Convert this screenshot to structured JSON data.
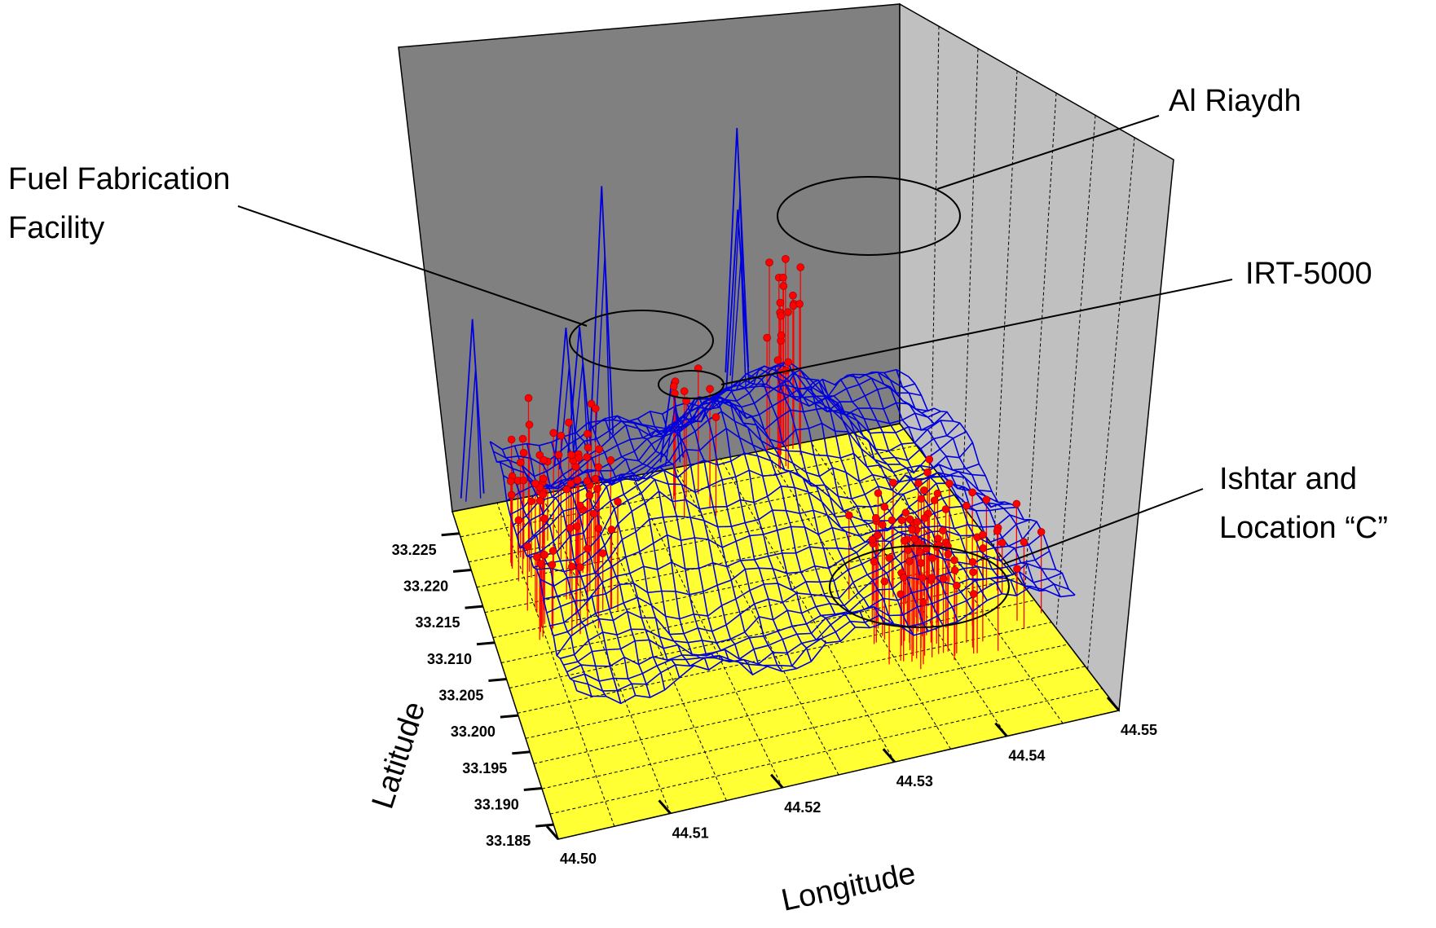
{
  "chart_data": {
    "type": "surface",
    "title": "",
    "xlabel": "Longitude",
    "ylabel": "Latitude",
    "x_ticks": [
      "44.50",
      "44.51",
      "44.52",
      "44.53",
      "44.54",
      "44.55"
    ],
    "y_ticks": [
      "33.185",
      "33.190",
      "33.195",
      "33.200",
      "33.205",
      "33.210",
      "33.215",
      "33.220",
      "33.225"
    ],
    "xlim": [
      44.5,
      44.55
    ],
    "ylim": [
      33.183,
      33.228
    ],
    "grid": true,
    "colors": {
      "floor": "#ffff33",
      "back_wall": "#808080",
      "side_wall": "#c0c0c0",
      "surface": "#0000dd",
      "samples": "#ff0000"
    },
    "annotations": [
      {
        "id": "fuel",
        "lines": [
          "Fuel Fabrication",
          "Facility"
        ]
      },
      {
        "id": "riaydh",
        "lines": [
          "Al Riaydh"
        ]
      },
      {
        "id": "irt",
        "lines": [
          "IRT-5000"
        ]
      },
      {
        "id": "ishtar",
        "lines": [
          "Ishtar and",
          "Location “C”"
        ]
      }
    ]
  }
}
